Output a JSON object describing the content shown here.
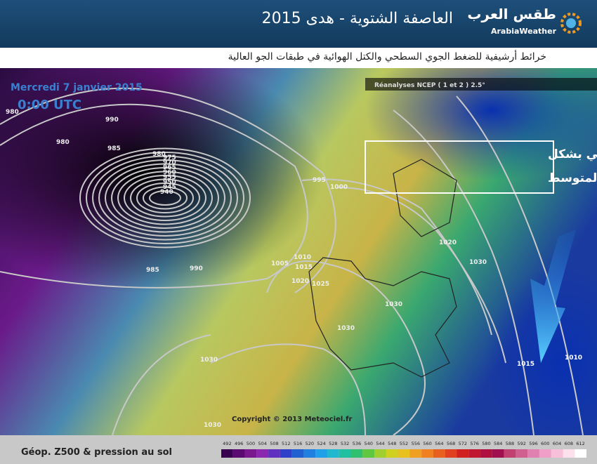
{
  "header": {
    "title": "العاصفة الشتوية - هدى 2015",
    "logo_arabic": "طقس العرب",
    "logo_latin": "ArabiaWeather"
  },
  "subtitle": "خرائط أرشيفية للضغط الجوي السطحي والكتل الهوائية في طبقات الجو العالية",
  "map": {
    "date": "Mercredi 7 janvier 2015",
    "time": "0:00 UTC",
    "source": "Réanalyses NCEP ( 1 et 2 ) 2.5°",
    "annotation": [
      "اندفاع الهواء القطبي بشكل",
      "مباشر نحو شرق المتوسط"
    ],
    "isobar_labels": [
      "980",
      "990",
      "980",
      "985",
      "980",
      "975",
      "970",
      "965",
      "960",
      "955",
      "950",
      "945",
      "940",
      "995",
      "1000",
      "1020",
      "1030",
      "1010",
      "1005",
      "1015",
      "1020",
      "1025",
      "1030",
      "1030",
      "1030",
      "1030",
      "1015",
      "1010",
      "985",
      "990"
    ],
    "copyright": "Copyright © 2013 Meteociel.fr"
  },
  "legend": {
    "title": "Géop. Z500 & pression au sol",
    "scale": [
      "492",
      "496",
      "500",
      "504",
      "508",
      "512",
      "516",
      "520",
      "524",
      "528",
      "532",
      "536",
      "540",
      "544",
      "548",
      "552",
      "556",
      "560",
      "564",
      "568",
      "572",
      "576",
      "580",
      "584",
      "588",
      "592",
      "596",
      "600",
      "604",
      "608",
      "612"
    ]
  }
}
